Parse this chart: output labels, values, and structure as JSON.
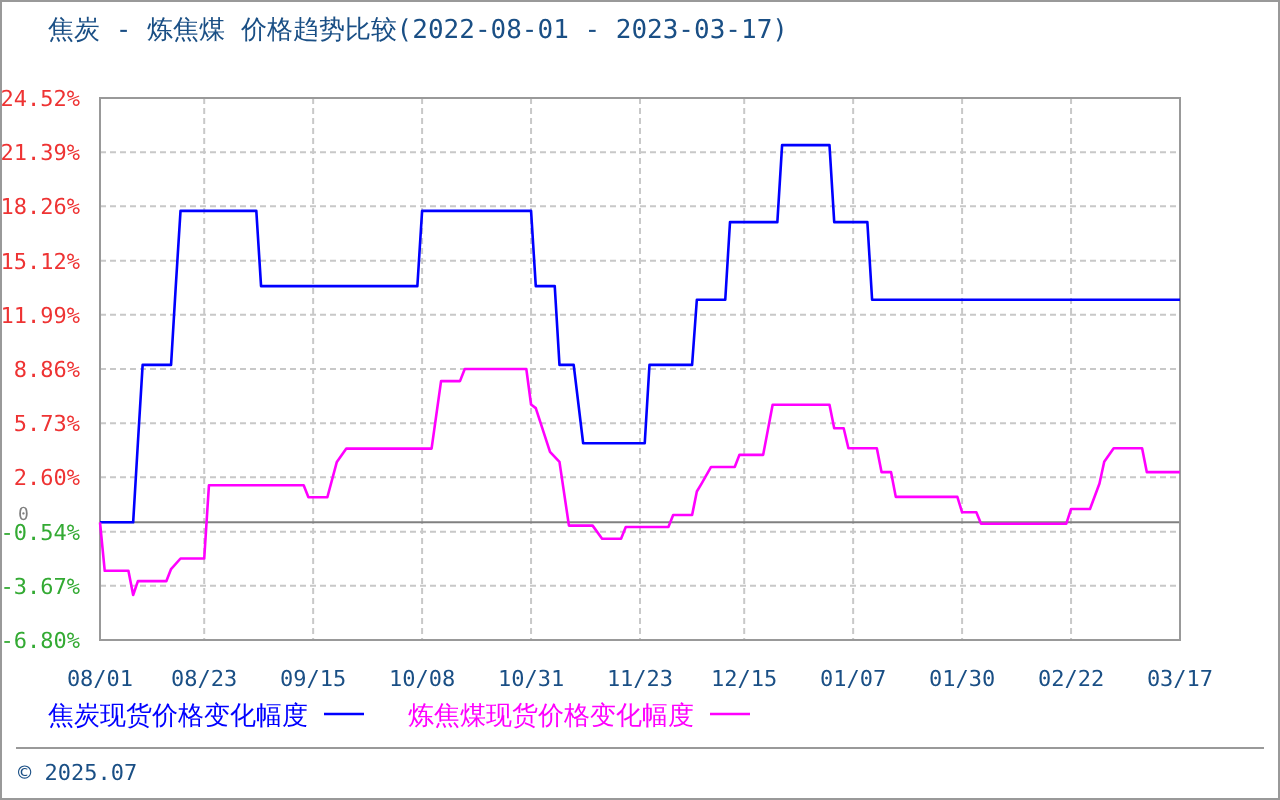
{
  "chart_data": {
    "type": "line",
    "title": "焦炭 - 炼焦煤 价格趋势比较(2022-08-01 - 2023-03-17)",
    "xlim": [
      "2022-08-01",
      "2023-03-17"
    ],
    "xticks": [
      {
        "value": "2022-08-01",
        "label": "08/01"
      },
      {
        "value": "2022-08-23",
        "label": "08/23"
      },
      {
        "value": "2022-09-15",
        "label": "09/15"
      },
      {
        "value": "2022-10-08",
        "label": "10/08"
      },
      {
        "value": "2022-10-31",
        "label": "10/31"
      },
      {
        "value": "2022-11-23",
        "label": "11/23"
      },
      {
        "value": "2022-12-15",
        "label": "12/15"
      },
      {
        "value": "2023-01-07",
        "label": "01/07"
      },
      {
        "value": "2023-01-30",
        "label": "01/30"
      },
      {
        "value": "2023-02-22",
        "label": "02/22"
      },
      {
        "value": "2023-03-17",
        "label": "03/17"
      }
    ],
    "ylim": [
      -6.8,
      24.52
    ],
    "yticks": [
      {
        "value": -6.8,
        "label": "-6.80%"
      },
      {
        "value": -3.67,
        "label": "-3.67%"
      },
      {
        "value": -0.54,
        "label": "-0.54%"
      },
      {
        "value": 2.6,
        "label": "2.60%"
      },
      {
        "value": 5.73,
        "label": "5.73%"
      },
      {
        "value": 8.86,
        "label": "8.86%"
      },
      {
        "value": 11.99,
        "label": "11.99%"
      },
      {
        "value": 15.12,
        "label": "15.12%"
      },
      {
        "value": 18.26,
        "label": "18.26%"
      },
      {
        "value": 21.39,
        "label": "21.39%"
      },
      {
        "value": 24.52,
        "label": "24.52%"
      }
    ],
    "grid": true,
    "legend": "bottom",
    "ref_lines": [
      {
        "axis": "y",
        "value": 0,
        "label": "0",
        "color": "#808080"
      }
    ],
    "annotations": [
      "© 2025.07"
    ],
    "series": [
      {
        "name": "焦炭现货价格变化幅度",
        "color": "#0000ff",
        "x": [
          "2022-08-01",
          "2022-08-08",
          "2022-08-09",
          "2022-08-10",
          "2022-08-16",
          "2022-08-17",
          "2022-08-18",
          "2022-09-03",
          "2022-09-04",
          "2022-10-07",
          "2022-10-08",
          "2022-10-31",
          "2022-11-01",
          "2022-11-05",
          "2022-11-06",
          "2022-11-09",
          "2022-11-11",
          "2022-11-24",
          "2022-11-25",
          "2022-12-04",
          "2022-12-05",
          "2022-12-11",
          "2022-12-12",
          "2022-12-22",
          "2022-12-23",
          "2023-01-02",
          "2023-01-03",
          "2023-01-10",
          "2023-01-11",
          "2023-03-17"
        ],
        "values": [
          0,
          0,
          4.6,
          9.1,
          9.1,
          13.65,
          18.0,
          18.0,
          13.65,
          13.65,
          18.0,
          18.0,
          13.65,
          13.65,
          9.1,
          9.1,
          4.57,
          4.57,
          9.1,
          9.1,
          12.86,
          12.86,
          17.35,
          17.35,
          21.8,
          21.8,
          17.35,
          17.35,
          12.86,
          12.86
        ]
      },
      {
        "name": "炼焦煤现货价格变化幅度",
        "color": "#ff00ff",
        "x": [
          "2022-08-01",
          "2022-08-02",
          "2022-08-07",
          "2022-08-08",
          "2022-08-09",
          "2022-08-15",
          "2022-08-16",
          "2022-08-18",
          "2022-08-23",
          "2022-08-24",
          "2022-09-13",
          "2022-09-14",
          "2022-09-18",
          "2022-09-20",
          "2022-09-22",
          "2022-10-10",
          "2022-10-12",
          "2022-10-16",
          "2022-10-17",
          "2022-10-30",
          "2022-10-31",
          "2022-11-01",
          "2022-11-04",
          "2022-11-06",
          "2022-11-08",
          "2022-11-13",
          "2022-11-15",
          "2022-11-19",
          "2022-11-20",
          "2022-11-29",
          "2022-11-30",
          "2022-12-04",
          "2022-12-05",
          "2022-12-06",
          "2022-12-08",
          "2022-12-13",
          "2022-12-14",
          "2022-12-19",
          "2022-12-21",
          "2023-01-02",
          "2023-01-03",
          "2023-01-05",
          "2023-01-06",
          "2023-01-12",
          "2023-01-13",
          "2023-01-15",
          "2023-01-16",
          "2023-01-29",
          "2023-01-30",
          "2023-02-02",
          "2023-02-03",
          "2023-02-21",
          "2023-02-22",
          "2023-02-26",
          "2023-02-28",
          "2023-03-01",
          "2023-03-03",
          "2023-03-09",
          "2023-03-10",
          "2023-03-17"
        ],
        "values": [
          0,
          -2.8,
          -2.8,
          -4.2,
          -3.4,
          -3.4,
          -2.7,
          -2.09,
          -2.09,
          2.14,
          2.14,
          1.45,
          1.45,
          3.49,
          4.26,
          4.26,
          8.16,
          8.16,
          8.86,
          8.86,
          6.81,
          6.6,
          4.07,
          3.49,
          -0.19,
          -0.19,
          -0.95,
          -0.95,
          -0.27,
          -0.27,
          0.42,
          0.42,
          1.78,
          2.24,
          3.2,
          3.2,
          3.9,
          3.9,
          6.79,
          6.79,
          5.44,
          5.44,
          4.28,
          4.28,
          2.9,
          2.9,
          1.47,
          1.47,
          0.58,
          0.58,
          -0.08,
          -0.08,
          0.77,
          0.77,
          2.24,
          3.5,
          4.28,
          4.28,
          2.9,
          2.9
        ]
      }
    ]
  }
}
